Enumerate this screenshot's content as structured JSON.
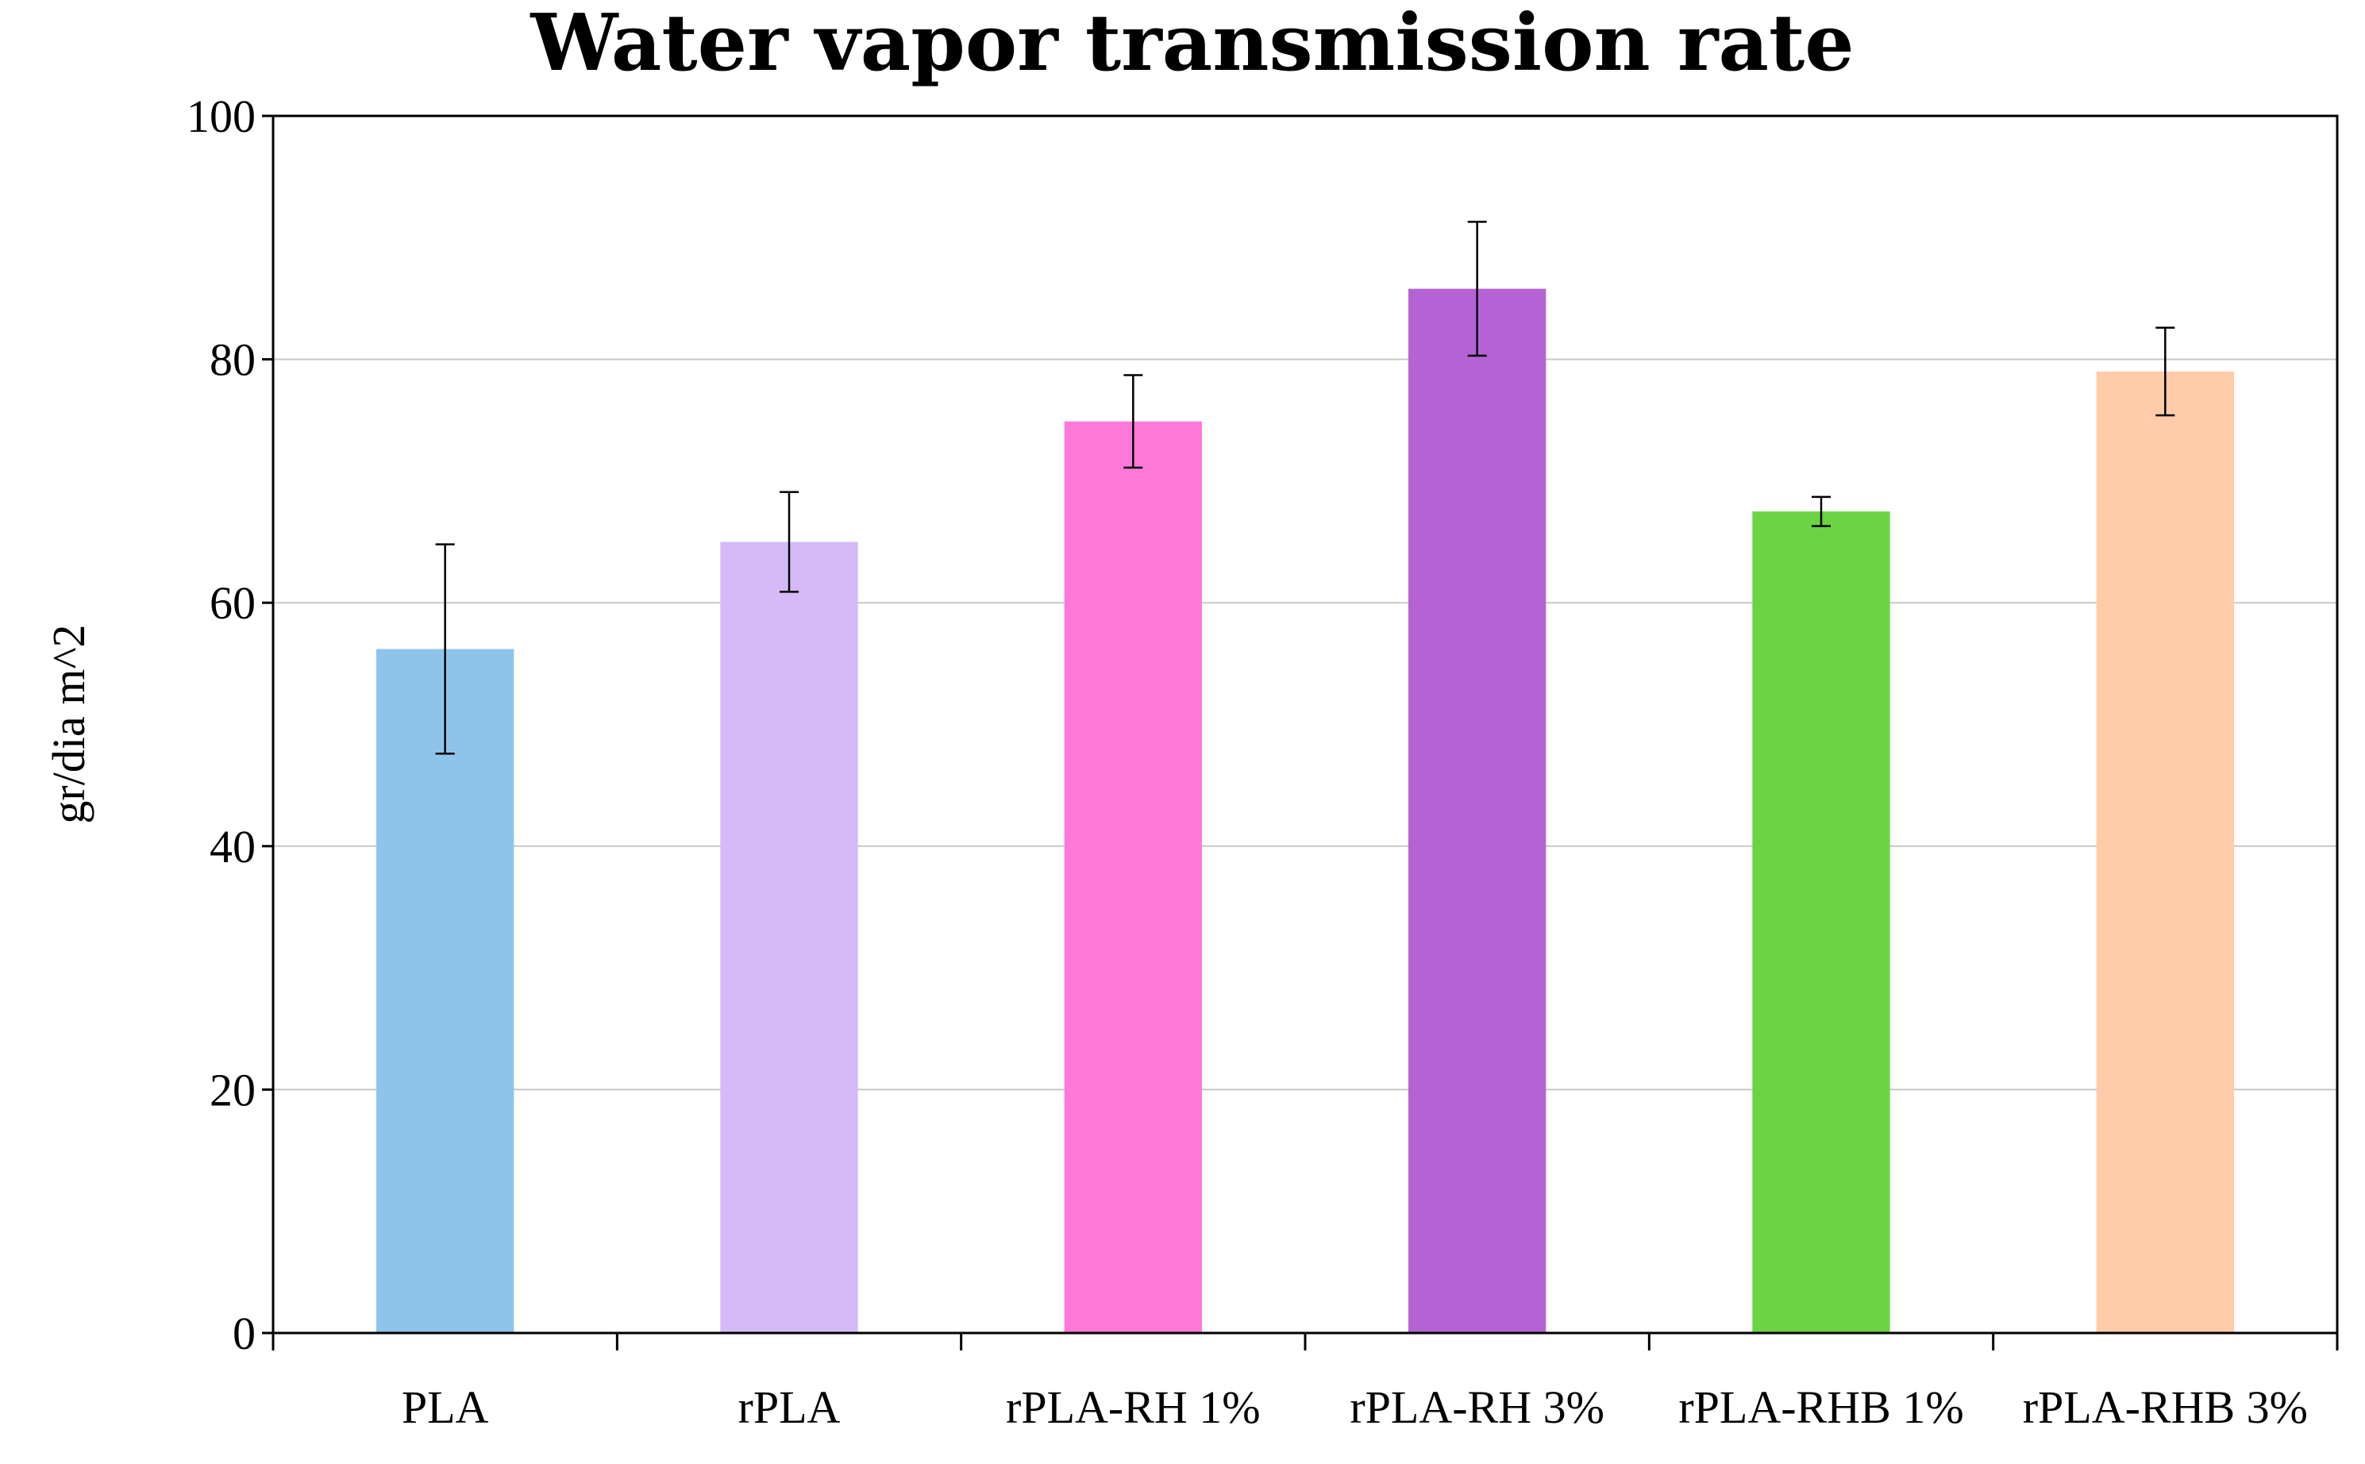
{
  "chart_data": {
    "type": "bar",
    "title": "Water vapor transmission rate",
    "xlabel": "",
    "ylabel": "gr/dia m^2",
    "ylim": [
      0,
      100
    ],
    "yticks": [
      0,
      20,
      40,
      60,
      80,
      100
    ],
    "grid": true,
    "legend": "none",
    "categories": [
      "PLA",
      "rPLA",
      "rPLA-RH 1%",
      "rPLA-RH 3%",
      "rPLA-RHB 1%",
      "rPLA-RHB 3%"
    ],
    "values": [
      56.2,
      65.0,
      74.9,
      85.8,
      67.5,
      79.0
    ],
    "error": [
      8.6,
      4.1,
      3.8,
      5.5,
      1.2,
      3.6
    ],
    "colors": [
      "#8EC4EA",
      "#D5BAF7",
      "#FF7AD8",
      "#B563D4",
      "#6CD444",
      "#FFCBA9"
    ]
  }
}
